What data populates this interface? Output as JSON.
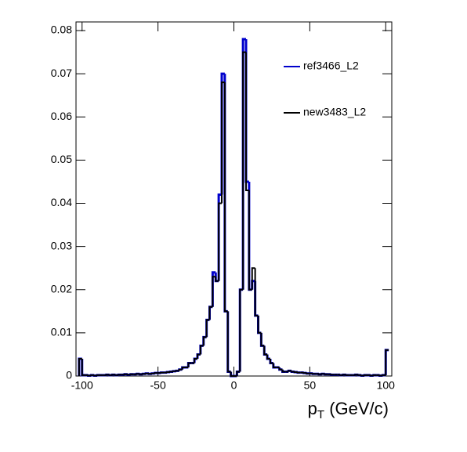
{
  "chart_data": {
    "type": "histogram",
    "x_label": [
      "p",
      "T",
      " (GeV/c)"
    ],
    "bins": [
      -102,
      -100,
      -98,
      -96,
      -94,
      -92,
      -90,
      -88,
      -86,
      -84,
      -82,
      -80,
      -78,
      -76,
      -74,
      -72,
      -70,
      -68,
      -66,
      -64,
      -62,
      -60,
      -58,
      -56,
      -54,
      -52,
      -50,
      -48,
      -46,
      -44,
      -42,
      -40,
      -38,
      -36,
      -34,
      -32,
      -30,
      -28,
      -26,
      -24,
      -22,
      -20,
      -18,
      -16,
      -14,
      -12,
      -10,
      -8,
      -6,
      -4,
      -2,
      0,
      2,
      4,
      6,
      8,
      10,
      12,
      14,
      16,
      18,
      20,
      22,
      24,
      26,
      28,
      30,
      32,
      34,
      36,
      38,
      40,
      42,
      44,
      46,
      48,
      50,
      52,
      54,
      56,
      58,
      60,
      62,
      64,
      66,
      68,
      70,
      72,
      74,
      76,
      78,
      80,
      82,
      84,
      86,
      88,
      90,
      92,
      94,
      96,
      98,
      100,
      102
    ],
    "series": [
      {
        "name": "ref3466_L2",
        "color": "#0000cc",
        "values": [
          0.004,
          0.0002,
          0.0002,
          0.0001,
          0.0002,
          0.0001,
          0.0002,
          0.0002,
          0.0002,
          0.0003,
          0.0002,
          0.0003,
          0.0002,
          0.0003,
          0.0003,
          0.0004,
          0.0003,
          0.0004,
          0.0004,
          0.0005,
          0.0004,
          0.0005,
          0.0006,
          0.0005,
          0.0006,
          0.0007,
          0.0007,
          0.0008,
          0.0008,
          0.0009,
          0.001,
          0.0011,
          0.0012,
          0.0015,
          0.002,
          0.002,
          0.003,
          0.003,
          0.004,
          0.005,
          0.007,
          0.009,
          0.013,
          0.016,
          0.024,
          0.022,
          0.042,
          0.07,
          0.015,
          0.001,
          0,
          0,
          0.001,
          0.02,
          0.078,
          0.045,
          0.02,
          0.022,
          0.014,
          0.01,
          0.007,
          0.005,
          0.004,
          0.003,
          0.002,
          0.002,
          0.0015,
          0.001,
          0.001,
          0.0012,
          0.001,
          0.0009,
          0.0008,
          0.0008,
          0.0007,
          0.0006,
          0.0006,
          0.0005,
          0.0005,
          0.0004,
          0.0005,
          0.0004,
          0.0004,
          0.0003,
          0.0003,
          0.0003,
          0.0002,
          0.0003,
          0.0002,
          0.0002,
          0.0002,
          0.0003,
          0.0002,
          0.0001,
          0.0002,
          0.0002,
          0.0001,
          0.0002,
          0.0002,
          0.0001,
          0.0002,
          0.006
        ]
      },
      {
        "name": "new3483_L2",
        "color": "#000000",
        "values": [
          0.004,
          0.0002,
          0.0002,
          0.0001,
          0.0002,
          0.0001,
          0.0002,
          0.0002,
          0.0002,
          0.0003,
          0.0002,
          0.0003,
          0.0002,
          0.0003,
          0.0003,
          0.0004,
          0.0003,
          0.0004,
          0.0004,
          0.0005,
          0.0004,
          0.0005,
          0.0006,
          0.0005,
          0.0006,
          0.0007,
          0.0007,
          0.0008,
          0.0008,
          0.0009,
          0.001,
          0.0011,
          0.0012,
          0.0015,
          0.002,
          0.002,
          0.003,
          0.003,
          0.004,
          0.005,
          0.007,
          0.009,
          0.013,
          0.016,
          0.023,
          0.022,
          0.04,
          0.068,
          0.015,
          0.001,
          0,
          0,
          0.001,
          0.02,
          0.075,
          0.043,
          0.02,
          0.025,
          0.014,
          0.01,
          0.007,
          0.005,
          0.004,
          0.003,
          0.002,
          0.002,
          0.0015,
          0.001,
          0.001,
          0.0012,
          0.001,
          0.0009,
          0.0008,
          0.0008,
          0.0007,
          0.0006,
          0.0006,
          0.0005,
          0.0005,
          0.0004,
          0.0005,
          0.0004,
          0.0004,
          0.0003,
          0.0003,
          0.0003,
          0.0002,
          0.0003,
          0.0002,
          0.0002,
          0.0002,
          0.0003,
          0.0002,
          0.0001,
          0.0002,
          0.0002,
          0.0001,
          0.0002,
          0.0002,
          0.0001,
          0.0002,
          0.006
        ]
      }
    ],
    "xlim": [
      -104,
      104
    ],
    "ylim": [
      0,
      0.082
    ],
    "xticks": [
      -100,
      -50,
      0,
      50,
      100
    ],
    "yticks": [
      0,
      0.01,
      0.02,
      0.03,
      0.04,
      0.05,
      0.06,
      0.07,
      0.08
    ],
    "legend": "upper right"
  }
}
